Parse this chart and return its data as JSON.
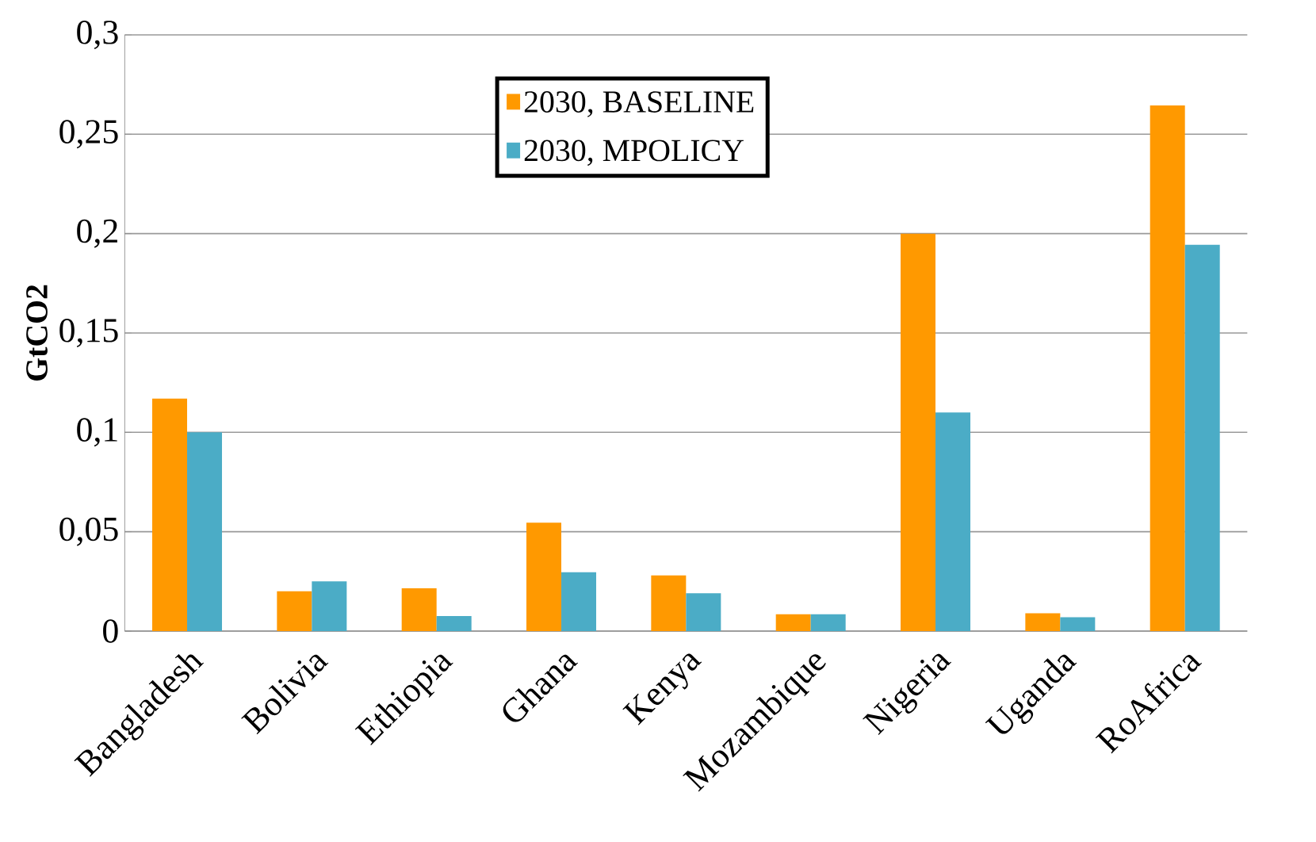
{
  "chart_data": {
    "type": "bar",
    "ylabel": "GtCO2",
    "categories": [
      "Bangladesh",
      "Bolivia",
      "Ethiopia",
      "Ghana",
      "Kenya",
      "Mozambique",
      "Nigeria",
      "Uganda",
      "RoAfrica"
    ],
    "series": [
      {
        "name": "2030, BASELINE",
        "color": "#ff9900",
        "values": [
          0.117,
          0.02,
          0.0215,
          0.0545,
          0.028,
          0.0085,
          0.2,
          0.009,
          0.2645
        ]
      },
      {
        "name": "2030, MPOLICY",
        "color": "#4bacc6",
        "values": [
          0.1,
          0.025,
          0.0076,
          0.0296,
          0.019,
          0.0085,
          0.11,
          0.007,
          0.1944
        ]
      }
    ],
    "ylim": [
      0,
      0.3
    ],
    "yticks": [
      0,
      {
        "value": 0.05,
        "label": "0,05"
      },
      {
        "value": 0.1,
        "label": "0,1"
      },
      {
        "value": 0.15,
        "label": "0,15"
      },
      {
        "value": 0.2,
        "label": "0,2"
      },
      {
        "value": 0.25,
        "label": "0,25"
      },
      {
        "value": 0.3,
        "label": "0,3"
      }
    ],
    "grid": "y",
    "legend": "top"
  }
}
